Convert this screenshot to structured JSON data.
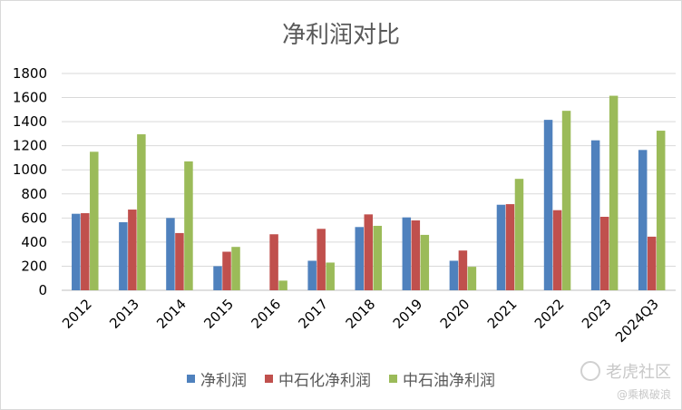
{
  "chart_data": {
    "type": "bar",
    "title": "净利润对比",
    "categories": [
      "2012",
      "2013",
      "2014",
      "2015",
      "2016",
      "2017",
      "2018",
      "2019",
      "2020",
      "2021",
      "2022",
      "2023",
      "2024Q3"
    ],
    "series": [
      {
        "name": "净利润",
        "color": "#4f81bd",
        "values": [
          635,
          565,
          600,
          200,
          0,
          245,
          525,
          605,
          245,
          710,
          1415,
          1245,
          1165
        ]
      },
      {
        "name": "中石化净利润",
        "color": "#c0504d",
        "values": [
          640,
          670,
          475,
          320,
          465,
          510,
          630,
          580,
          330,
          715,
          665,
          610,
          445
        ]
      },
      {
        "name": "中石油净利润",
        "color": "#9bbb59",
        "values": [
          1150,
          1295,
          1070,
          360,
          80,
          230,
          535,
          460,
          195,
          925,
          1490,
          1615,
          1325
        ]
      }
    ],
    "ylim": [
      0,
      1800
    ],
    "yticks": [
      0,
      200,
      400,
      600,
      800,
      1000,
      1200,
      1400,
      1600,
      1800
    ],
    "grid": true,
    "legend_position": "bottom"
  },
  "watermark": {
    "brand": "老虎社区",
    "user": "@乘枫破浪",
    "logo_icon": "tiger-logo-icon"
  }
}
